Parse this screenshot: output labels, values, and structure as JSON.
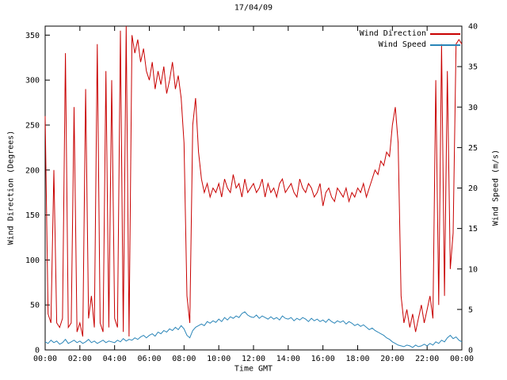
{
  "chart_data": {
    "type": "line",
    "title": "17/04/09",
    "xlabel": "Time GMT",
    "ylabel_left": "Wind Direction (Degrees)",
    "ylabel_right": "Wind Speed (m/s)",
    "grid": false,
    "legend_position": "top-right-inside",
    "x_tick_labels": [
      "00:00",
      "02:00",
      "04:00",
      "06:00",
      "08:00",
      "10:00",
      "12:00",
      "14:00",
      "16:00",
      "18:00",
      "20:00",
      "22:00",
      "00:00"
    ],
    "x_range_minutes": [
      0,
      1440
    ],
    "interval_minutes": 10,
    "left_axis": {
      "min": 0,
      "max": 360,
      "ticks": [
        0,
        50,
        100,
        150,
        200,
        250,
        300,
        350
      ]
    },
    "right_axis": {
      "min": 0,
      "max": 40,
      "ticks": [
        0,
        5,
        10,
        15,
        20,
        25,
        30,
        35,
        40
      ]
    },
    "series": [
      {
        "name": "Wind Direction",
        "axis": "left",
        "unit": "degrees",
        "color": "#c80000",
        "values": [
          260,
          40,
          30,
          200,
          30,
          25,
          35,
          330,
          25,
          30,
          270,
          20,
          30,
          15,
          290,
          35,
          60,
          25,
          340,
          30,
          20,
          310,
          25,
          300,
          35,
          25,
          355,
          20,
          360,
          15,
          350,
          330,
          345,
          320,
          335,
          310,
          300,
          320,
          290,
          310,
          295,
          315,
          285,
          300,
          320,
          290,
          305,
          280,
          230,
          60,
          30,
          250,
          280,
          220,
          190,
          175,
          185,
          170,
          180,
          175,
          185,
          170,
          190,
          180,
          175,
          195,
          180,
          185,
          170,
          190,
          175,
          180,
          185,
          175,
          180,
          190,
          170,
          185,
          175,
          180,
          170,
          185,
          190,
          175,
          180,
          185,
          175,
          170,
          190,
          180,
          175,
          185,
          180,
          170,
          175,
          185,
          160,
          175,
          180,
          170,
          165,
          180,
          175,
          170,
          180,
          165,
          175,
          170,
          180,
          175,
          185,
          170,
          180,
          190,
          200,
          195,
          210,
          205,
          220,
          215,
          250,
          270,
          230,
          60,
          30,
          45,
          25,
          40,
          20,
          35,
          50,
          30,
          45,
          60,
          35,
          300,
          50,
          340,
          60,
          310,
          90,
          130,
          340,
          345,
          340
        ]
      },
      {
        "name": "Wind Speed",
        "axis": "right",
        "unit": "m/s",
        "color": "#2a85b8",
        "values": [
          1.0,
          0.8,
          1.2,
          0.9,
          1.1,
          0.7,
          0.9,
          1.3,
          0.8,
          1.0,
          1.2,
          0.9,
          1.1,
          0.8,
          1.0,
          1.3,
          0.9,
          1.1,
          0.8,
          1.0,
          1.2,
          0.9,
          1.1,
          1.0,
          0.9,
          1.2,
          1.0,
          1.4,
          1.1,
          1.3,
          1.2,
          1.5,
          1.3,
          1.6,
          1.8,
          1.5,
          1.8,
          2.0,
          1.7,
          2.2,
          2.0,
          2.4,
          2.2,
          2.6,
          2.4,
          2.8,
          2.5,
          3.0,
          2.6,
          1.8,
          1.5,
          2.4,
          2.8,
          3.0,
          3.2,
          3.0,
          3.5,
          3.3,
          3.6,
          3.4,
          3.8,
          3.5,
          4.0,
          3.7,
          4.1,
          3.9,
          4.2,
          4.0,
          4.5,
          4.7,
          4.3,
          4.1,
          4.0,
          4.3,
          3.9,
          4.2,
          4.0,
          3.8,
          4.1,
          3.8,
          4.0,
          3.7,
          4.2,
          3.9,
          3.8,
          4.0,
          3.6,
          3.9,
          3.7,
          4.0,
          3.8,
          3.5,
          3.9,
          3.6,
          3.8,
          3.5,
          3.7,
          3.4,
          3.8,
          3.5,
          3.3,
          3.6,
          3.4,
          3.6,
          3.2,
          3.5,
          3.3,
          3.0,
          3.2,
          2.9,
          3.1,
          2.8,
          2.5,
          2.7,
          2.4,
          2.2,
          2.0,
          1.8,
          1.5,
          1.3,
          1.0,
          0.8,
          0.6,
          0.5,
          0.4,
          0.6,
          0.5,
          0.3,
          0.6,
          0.4,
          0.5,
          0.7,
          0.5,
          0.8,
          0.6,
          1.0,
          0.8,
          1.2,
          1.0,
          1.5,
          1.8,
          1.4,
          1.6,
          1.2,
          1.0
        ]
      }
    ]
  }
}
